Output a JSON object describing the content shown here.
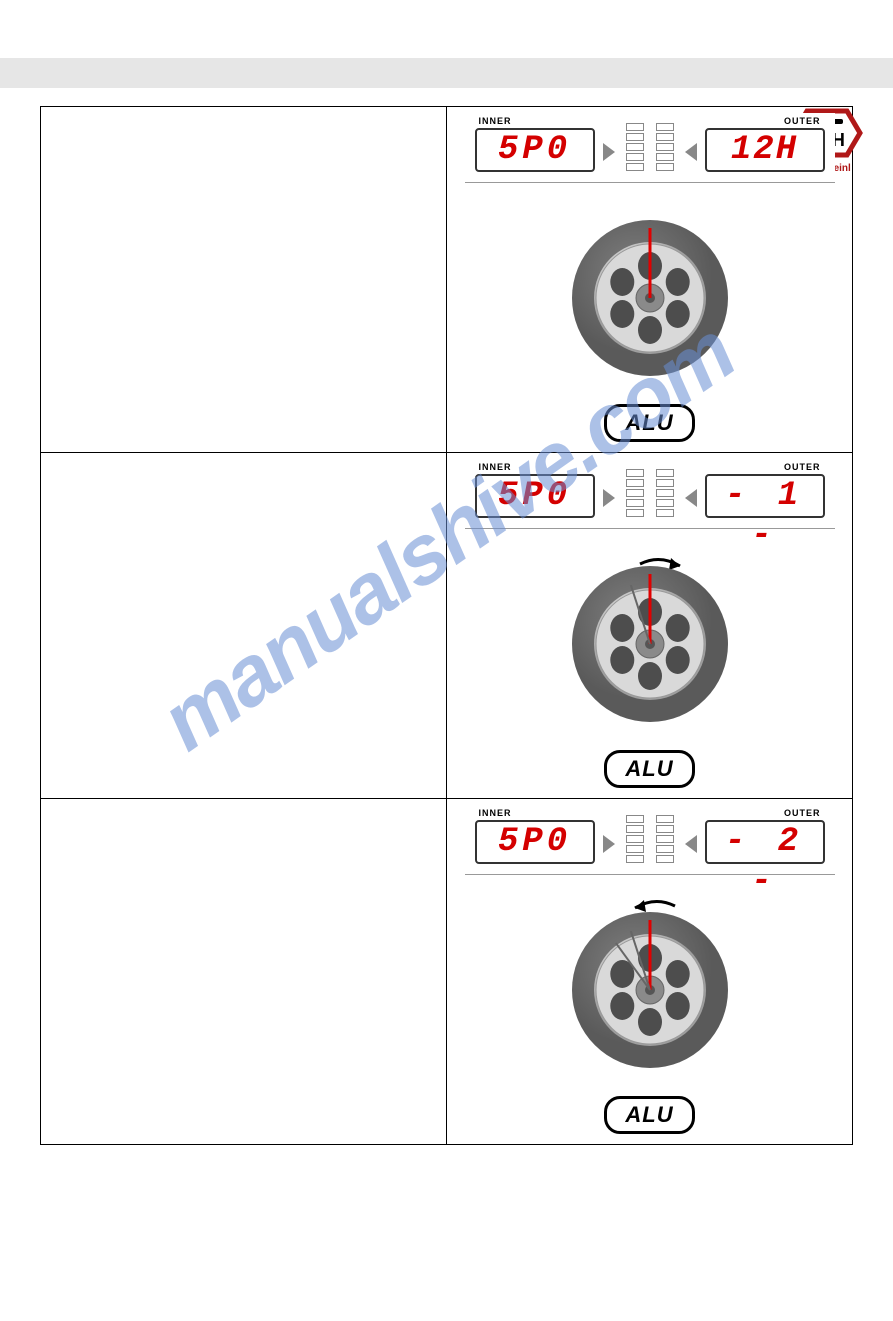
{
  "brand": {
    "name": "ATH-Heinl",
    "logo_text": "ATH",
    "logo_border_color": "#b01818"
  },
  "watermark": {
    "text": "manualshive.com",
    "color": "#6a8fd4",
    "opacity": 0.55,
    "rotation_deg": -35
  },
  "display": {
    "inner_label": "INNER",
    "outer_label": "OUTER",
    "seg_color": "#d40000",
    "seg_border": "#333333",
    "led_count": 5
  },
  "alu_label": "ALU",
  "rows": [
    {
      "inner_value": "5P0",
      "outer_value": "12H",
      "outer_spacing": "2px",
      "wheel": {
        "marks": [
          {
            "angle_deg": 0,
            "length": 70,
            "color": "#e00000",
            "width": 3
          }
        ],
        "rotate_arrow": null
      }
    },
    {
      "inner_value": "5P0",
      "outer_value": "- 1 -",
      "outer_spacing": "6px",
      "wheel": {
        "marks": [
          {
            "angle_deg": 0,
            "length": 70,
            "color": "#e00000",
            "width": 3
          },
          {
            "angle_deg": -18,
            "length": 62,
            "color": "#666666",
            "width": 2
          }
        ],
        "rotate_arrow": {
          "direction": "cw",
          "color": "#000000"
        }
      }
    },
    {
      "inner_value": "5P0",
      "outer_value": "- 2 -",
      "outer_spacing": "6px",
      "wheel": {
        "marks": [
          {
            "angle_deg": 0,
            "length": 70,
            "color": "#e00000",
            "width": 3
          },
          {
            "angle_deg": -18,
            "length": 62,
            "color": "#666666",
            "width": 2
          },
          {
            "angle_deg": -36,
            "length": 58,
            "color": "#666666",
            "width": 2
          }
        ],
        "rotate_arrow": {
          "direction": "ccw",
          "color": "#000000"
        }
      }
    }
  ],
  "wheel_style": {
    "tire_outer": "#5a5a5a",
    "tire_inner": "#808080",
    "rim_face": "#d9d9d9",
    "rim_shadow": "#9e9e9e",
    "hub": "#8a8a8a",
    "spoke_hole": "#4d4d4d",
    "radius": 78
  }
}
